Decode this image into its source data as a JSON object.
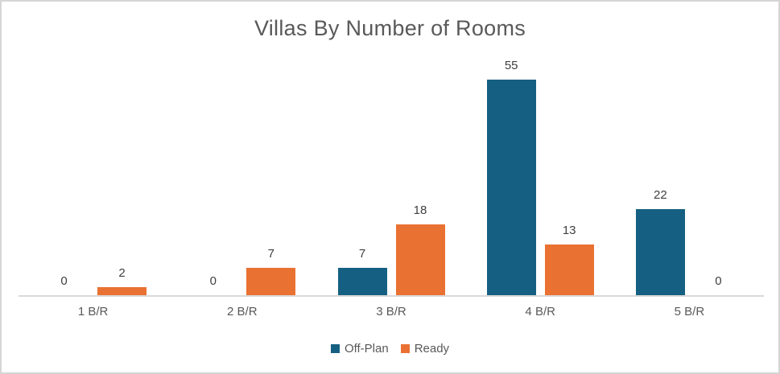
{
  "chart_data": {
    "type": "bar",
    "title": "Villas By Number of Rooms",
    "categories": [
      "1 B/R",
      "2 B/R",
      "3 B/R",
      "4 B/R",
      "5 B/R"
    ],
    "series": [
      {
        "name": "Off-Plan",
        "color": "#156082",
        "values": [
          0,
          0,
          7,
          55,
          22
        ]
      },
      {
        "name": "Ready",
        "color": "#E97132",
        "values": [
          2,
          7,
          18,
          13,
          0
        ]
      }
    ],
    "ylim": [
      0,
      55
    ],
    "grid": false,
    "data_labels": true,
    "legend_position": "bottom",
    "xlabel": "",
    "ylabel": ""
  },
  "style": {
    "background": "#FFFFFF",
    "frame_border_color": "#D5D5D5",
    "axis_line_color": "#D9D9D9",
    "title_color": "#595959",
    "data_label_color": "#404040",
    "axis_text_color": "#595959",
    "legend_text_color": "#595959"
  }
}
